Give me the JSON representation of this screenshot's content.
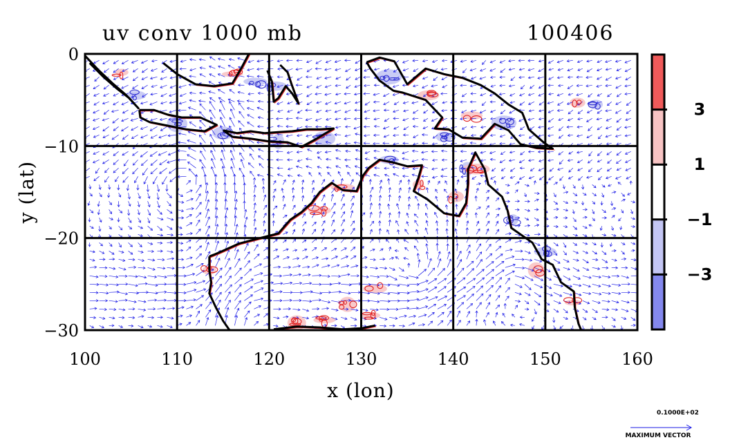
{
  "chart_data": {
    "type": "vector field with filled contours",
    "title": "uv conv 1000 mb",
    "date_label": "100406",
    "xlabel": "x (lon)",
    "ylabel": "y (lat)",
    "xlim": [
      100,
      160
    ],
    "ylim": [
      -30,
      0
    ],
    "x_ticks": [
      "100",
      "110",
      "120",
      "130",
      "140",
      "150",
      "160"
    ],
    "y_ticks": [
      "0",
      "−10",
      "−20",
      "−30"
    ],
    "grid": true,
    "grid_lon": [
      110,
      120,
      130,
      140,
      150
    ],
    "grid_lat": [
      -10,
      -20
    ],
    "colorbar": {
      "placement": "right",
      "tick_labels": [
        "3",
        "1",
        "−1",
        "−3"
      ],
      "tick_values": [
        3,
        1,
        -1,
        -3
      ],
      "bands": [
        {
          "range": "> 3",
          "color": "#f05a5a"
        },
        {
          "range": "1 to 3",
          "color": "#f8c4c4"
        },
        {
          "range": "-1 to 1",
          "color": "#ffffff"
        },
        {
          "range": "-3 to -1",
          "color": "#c4c6f4"
        },
        {
          "range": "< -3",
          "color": "#8488ee"
        }
      ]
    },
    "reference_vector": {
      "value_label": "0.1000E+02",
      "caption": "MAXIMUM VECTOR"
    },
    "colors": {
      "vectors": "#1a1ae6",
      "positive_contour": "#e02020",
      "negative_contour": "#3030d0",
      "coastline": "#000000"
    },
    "coastlines": [
      {
        "name": "sumatra",
        "points": [
          [
            100,
            -0.2
          ],
          [
            101.5,
            -1.8
          ],
          [
            103,
            -3.2
          ],
          [
            104.5,
            -4.5
          ],
          [
            105.8,
            -5.9
          ],
          [
            104.8,
            -4.8
          ],
          [
            103.5,
            -3.8
          ],
          [
            102,
            -2.5
          ],
          [
            100.5,
            -1
          ]
        ]
      },
      {
        "name": "java",
        "points": [
          [
            105.9,
            -6.1
          ],
          [
            107.5,
            -6.1
          ],
          [
            109,
            -6.6
          ],
          [
            110.5,
            -6.9
          ],
          [
            112.5,
            -6.9
          ],
          [
            114.3,
            -7.7
          ],
          [
            113,
            -8.4
          ],
          [
            111,
            -8.2
          ],
          [
            109,
            -7.8
          ],
          [
            107,
            -7.4
          ],
          [
            106,
            -6.9
          ],
          [
            105.9,
            -6.1
          ]
        ]
      },
      {
        "name": "lesser-sunda",
        "points": [
          [
            115,
            -8.3
          ],
          [
            116.5,
            -8.6
          ],
          [
            118,
            -8.4
          ],
          [
            119.5,
            -8.6
          ],
          [
            121,
            -8.5
          ],
          [
            122.5,
            -8.4
          ],
          [
            124,
            -8.2
          ],
          [
            125.5,
            -8.2
          ],
          [
            127,
            -8.1
          ],
          [
            125,
            -9.3
          ],
          [
            123.5,
            -10.1
          ],
          [
            122,
            -9.6
          ],
          [
            120,
            -9.5
          ],
          [
            118,
            -9.2
          ],
          [
            116,
            -9
          ],
          [
            115,
            -8.3
          ]
        ]
      },
      {
        "name": "borneo-south",
        "points": [
          [
            108.5,
            -1
          ],
          [
            110,
            -2.2
          ],
          [
            112,
            -3.3
          ],
          [
            114,
            -3.5
          ],
          [
            116,
            -3.2
          ],
          [
            117,
            -1.5
          ],
          [
            117.8,
            0
          ]
        ]
      },
      {
        "name": "sulawesi",
        "points": [
          [
            119.8,
            -1.8
          ],
          [
            120.3,
            -3
          ],
          [
            120.5,
            -5.2
          ],
          [
            121,
            -4.8
          ],
          [
            121.8,
            -3.5
          ],
          [
            122.5,
            -4.3
          ],
          [
            123.2,
            -5.4
          ],
          [
            122.4,
            -3.2
          ],
          [
            122,
            -2
          ],
          [
            121.2,
            -1.2
          ]
        ]
      },
      {
        "name": "new-guinea",
        "points": [
          [
            130.6,
            -0.9
          ],
          [
            132,
            -0.4
          ],
          [
            133.6,
            -0.8
          ],
          [
            135,
            -3.3
          ],
          [
            137,
            -1.6
          ],
          [
            139,
            -2.2
          ],
          [
            141,
            -2.6
          ],
          [
            143,
            -3.4
          ],
          [
            144.5,
            -4.3
          ],
          [
            146,
            -5.5
          ],
          [
            147.5,
            -6.4
          ],
          [
            148.2,
            -8.2
          ],
          [
            149.8,
            -9.6
          ],
          [
            150.8,
            -10.3
          ],
          [
            149,
            -10.2
          ],
          [
            147.3,
            -9.8
          ],
          [
            146,
            -8.3
          ],
          [
            144.5,
            -7.6
          ],
          [
            143,
            -9.2
          ],
          [
            141,
            -9.1
          ],
          [
            139.5,
            -8.2
          ],
          [
            138,
            -8.1
          ],
          [
            138.8,
            -6.9
          ],
          [
            137,
            -5
          ],
          [
            134.5,
            -4.2
          ],
          [
            133.5,
            -4
          ],
          [
            132,
            -2.9
          ],
          [
            131,
            -1.6
          ],
          [
            130.6,
            -0.9
          ]
        ]
      },
      {
        "name": "australia",
        "points": [
          [
            113.5,
            -22
          ],
          [
            114,
            -21.8
          ],
          [
            114.7,
            -21.5
          ],
          [
            116.7,
            -20.6
          ],
          [
            119,
            -20
          ],
          [
            121,
            -19.5
          ],
          [
            122.3,
            -18
          ],
          [
            123.5,
            -17.2
          ],
          [
            124.6,
            -16.2
          ],
          [
            125.5,
            -15
          ],
          [
            126.8,
            -14
          ],
          [
            128,
            -14.8
          ],
          [
            129.5,
            -14.9
          ],
          [
            130.2,
            -13.2
          ],
          [
            130.8,
            -12.4
          ],
          [
            132,
            -11.5
          ],
          [
            133.5,
            -11.8
          ],
          [
            135,
            -12.2
          ],
          [
            136.6,
            -12.1
          ],
          [
            136.2,
            -13.5
          ],
          [
            135.7,
            -14.9
          ],
          [
            137.2,
            -15.8
          ],
          [
            139,
            -17.3
          ],
          [
            140.6,
            -17.6
          ],
          [
            141.4,
            -16.2
          ],
          [
            141.6,
            -14
          ],
          [
            141.6,
            -12.5
          ],
          [
            142.4,
            -10.7
          ],
          [
            143.4,
            -12.5
          ],
          [
            143.8,
            -14.2
          ],
          [
            145.3,
            -15.5
          ],
          [
            145.9,
            -17
          ],
          [
            146.3,
            -18.9
          ],
          [
            148.6,
            -20.5
          ],
          [
            149.6,
            -22.3
          ],
          [
            150.8,
            -22.9
          ],
          [
            151.7,
            -24.8
          ],
          [
            153.1,
            -25.8
          ],
          [
            153.2,
            -27.5
          ],
          [
            153.6,
            -29.3
          ],
          [
            153.9,
            -30
          ]
        ]
      },
      {
        "name": "australia-west",
        "points": [
          [
            115.7,
            -30
          ],
          [
            115,
            -29
          ],
          [
            114.2,
            -27.5
          ],
          [
            113.5,
            -26
          ],
          [
            113.7,
            -24.8
          ],
          [
            113.5,
            -23.5
          ],
          [
            113.5,
            -22
          ]
        ]
      },
      {
        "name": "bight",
        "points": [
          [
            120.5,
            -29.9
          ],
          [
            123,
            -29.6
          ],
          [
            125.5,
            -29.7
          ],
          [
            128,
            -29.9
          ],
          [
            130,
            -29.8
          ],
          [
            131.5,
            -29.5
          ]
        ]
      }
    ],
    "vector_features": [
      {
        "type": "westerly-belt",
        "lat": -25.5
      },
      {
        "type": "southerly-plume",
        "lon": 115
      },
      {
        "type": "anticyclone",
        "lon": 146,
        "lat": -24.5
      },
      {
        "type": "cyclone",
        "lon": 135.5,
        "lat": -24
      },
      {
        "type": "cyclone",
        "lon": 111,
        "lat": -14
      },
      {
        "type": "onshore-flow",
        "lon": 129,
        "lat": -18
      }
    ],
    "convergence_regions": [
      {
        "lon": 105.5,
        "lat": -4.5,
        "sign": "negative"
      },
      {
        "lon": 110,
        "lat": -7.6,
        "sign": "negative"
      },
      {
        "lon": 115,
        "lat": -8.6,
        "sign": "negative"
      },
      {
        "lon": 121,
        "lat": -9.5,
        "sign": "negative"
      },
      {
        "lon": 126,
        "lat": -9.2,
        "sign": "negative"
      },
      {
        "lon": 120.7,
        "lat": -3.5,
        "sign": "negative"
      },
      {
        "lon": 118.5,
        "lat": -3,
        "sign": "negative"
      },
      {
        "lon": 133,
        "lat": -11.5,
        "sign": "negative"
      },
      {
        "lon": 141.5,
        "lat": -12.5,
        "sign": "negative"
      },
      {
        "lon": 145.5,
        "lat": -7.5,
        "sign": "negative"
      },
      {
        "lon": 146.5,
        "lat": -18,
        "sign": "negative"
      },
      {
        "lon": 150,
        "lat": -21.5,
        "sign": "negative"
      },
      {
        "lon": 155.5,
        "lat": -5.5,
        "sign": "negative"
      },
      {
        "lon": 133,
        "lat": -2.5,
        "sign": "negative"
      },
      {
        "lon": 139,
        "lat": -9,
        "sign": "negative"
      },
      {
        "lon": 128,
        "lat": -14.5,
        "sign": "positive"
      },
      {
        "lon": 136.2,
        "lat": -14.2,
        "sign": "positive"
      },
      {
        "lon": 140.3,
        "lat": -15.5,
        "sign": "positive"
      },
      {
        "lon": 142.5,
        "lat": -12.5,
        "sign": "positive"
      },
      {
        "lon": 125.5,
        "lat": -17,
        "sign": "positive"
      },
      {
        "lon": 128.5,
        "lat": -27.2,
        "sign": "positive"
      },
      {
        "lon": 131.5,
        "lat": -25.5,
        "sign": "positive"
      },
      {
        "lon": 123,
        "lat": -29.2,
        "sign": "positive"
      },
      {
        "lon": 126,
        "lat": -28.9,
        "sign": "positive"
      },
      {
        "lon": 131,
        "lat": -28.4,
        "sign": "positive"
      },
      {
        "lon": 137.3,
        "lat": -4.5,
        "sign": "positive"
      },
      {
        "lon": 142,
        "lat": -6.7,
        "sign": "positive"
      },
      {
        "lon": 153.5,
        "lat": -5.3,
        "sign": "positive"
      },
      {
        "lon": 149,
        "lat": -23.5,
        "sign": "positive"
      },
      {
        "lon": 153,
        "lat": -27,
        "sign": "positive"
      },
      {
        "lon": 104,
        "lat": -2,
        "sign": "positive"
      },
      {
        "lon": 116,
        "lat": -2.2,
        "sign": "positive"
      },
      {
        "lon": 113.5,
        "lat": -23.5,
        "sign": "positive"
      }
    ]
  }
}
